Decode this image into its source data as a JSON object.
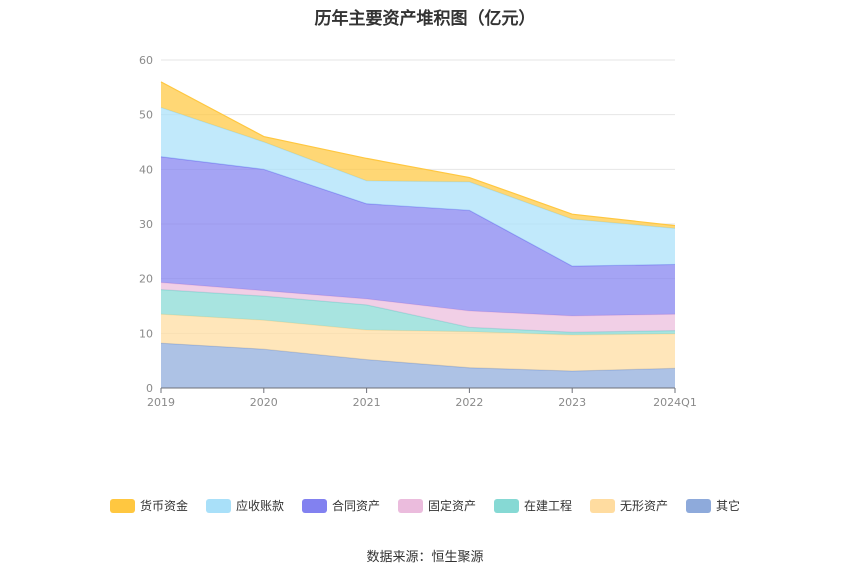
{
  "chart_data": {
    "type": "area",
    "stacked": true,
    "title": "历年主要资产堆积图（亿元）",
    "categories": [
      "2019",
      "2020",
      "2021",
      "2022",
      "2023",
      "2024Q1"
    ],
    "ylim": [
      0,
      60
    ],
    "yticks": [
      0,
      10,
      20,
      30,
      40,
      50,
      60
    ],
    "grid": true,
    "legend_position": "bottom",
    "series": [
      {
        "name": "其它",
        "color": "#8eaadb",
        "values": [
          8.2,
          7.1,
          5.2,
          3.7,
          3.1,
          3.6
        ]
      },
      {
        "name": "无形资产",
        "color": "#ffdca0",
        "values": [
          5.3,
          5.3,
          5.4,
          6.6,
          6.6,
          6.3
        ]
      },
      {
        "name": "在建工程",
        "color": "#86d9d4",
        "values": [
          4.5,
          4.4,
          4.6,
          0.8,
          0.5,
          0.6
        ]
      },
      {
        "name": "固定资产",
        "color": "#ebbcdd",
        "values": [
          1.3,
          1.0,
          1.1,
          3.0,
          3.0,
          3.0
        ]
      },
      {
        "name": "合同资产",
        "color": "#8281f0",
        "values": [
          23.0,
          22.2,
          17.4,
          18.4,
          9.1,
          9.1
        ]
      },
      {
        "name": "应收账款",
        "color": "#a9e0f9",
        "values": [
          9.0,
          5.0,
          4.2,
          5.2,
          8.6,
          6.6
        ]
      },
      {
        "name": "货币资金",
        "color": "#ffc740",
        "values": [
          4.7,
          1.0,
          4.1,
          0.8,
          0.9,
          0.5
        ]
      }
    ]
  },
  "source": "数据来源：恒生聚源"
}
